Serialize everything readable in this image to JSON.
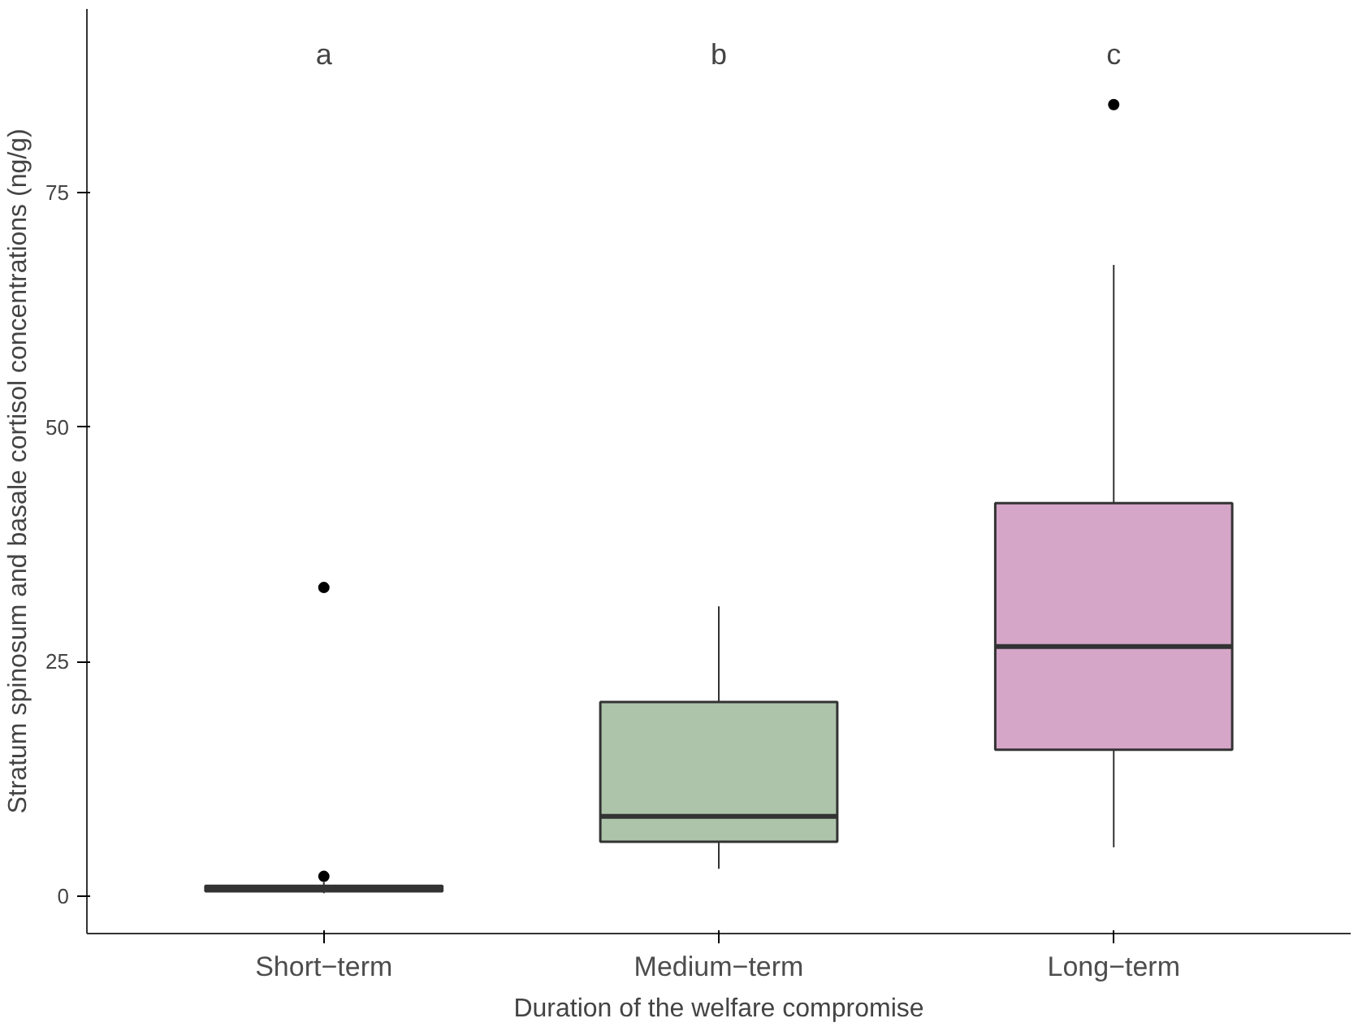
{
  "chart_data": {
    "type": "box",
    "xlabel": "Duration of the welfare compromise",
    "ylabel": "Stratum spinosum and basale cortisol concentrations (ng/g)",
    "categories": [
      "Short−term",
      "Medium−term",
      "Long−term"
    ],
    "colors": [
      "#3a3a3a",
      "#adc4aa",
      "#d5a6c8"
    ],
    "boxes": [
      {
        "low": 0.3,
        "q1": 0.5,
        "median": 0.8,
        "q3": 1.1,
        "high": 1.5,
        "outliers": [
          2.1,
          32.9
        ]
      },
      {
        "low": 2.9,
        "q1": 5.8,
        "median": 8.5,
        "q3": 20.7,
        "high": 30.9
      },
      {
        "low": 5.2,
        "q1": 15.6,
        "median": 26.6,
        "q3": 41.9,
        "high": 67.3,
        "outliers": [
          84.4
        ]
      }
    ],
    "annotations": [
      "a",
      "b",
      "c"
    ],
    "ylim": [
      -4,
      94.6
    ],
    "yticks": [
      0,
      25,
      50,
      75
    ],
    "grid": false
  }
}
